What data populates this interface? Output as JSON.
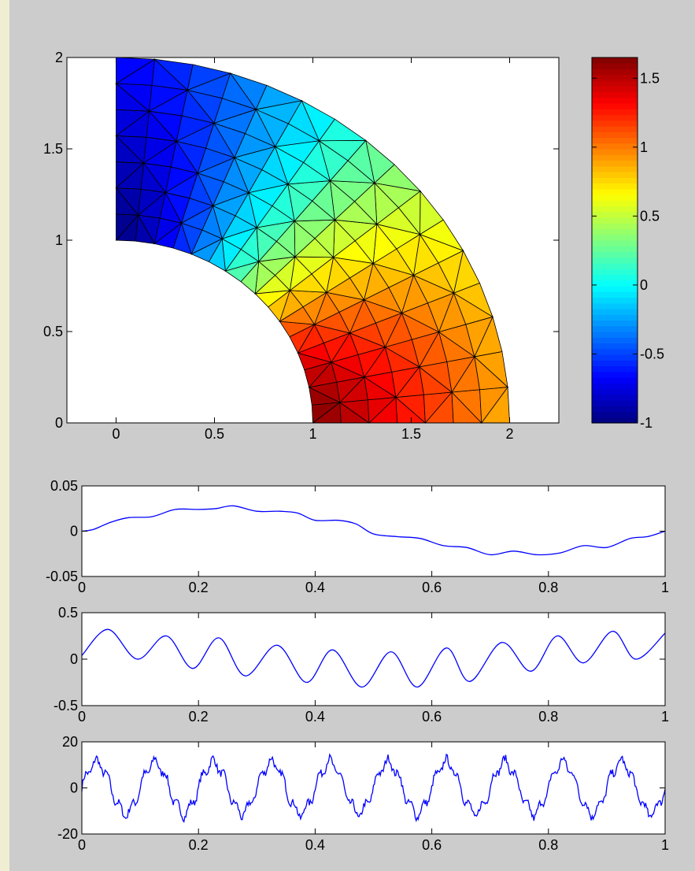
{
  "colors": {
    "frame_background": "#cccccc",
    "page_background": "#f0eed2",
    "axes_background": "#ffffff",
    "line": "#0000ff",
    "mesh_edge": "#000000"
  },
  "chart_data": [
    {
      "type": "heatmap",
      "description_kind": "pde-solution-surface-on-triangular-mesh",
      "domain_shape": "quarter-annulus",
      "inner_radius": 1,
      "outer_radius": 2,
      "xlim": [
        -0.25,
        2.25
      ],
      "ylim": [
        0,
        2
      ],
      "x_ticks": [
        0,
        0.5,
        1,
        1.5,
        2
      ],
      "x_tick_labels": [
        "0",
        "0.5",
        "1",
        "1.5",
        "2"
      ],
      "y_ticks": [
        0,
        0.5,
        1,
        1.5,
        2
      ],
      "y_tick_labels": [
        "0",
        "0.5",
        "1",
        "1.5",
        "2"
      ],
      "colormap": "jet",
      "color_range": [
        -1,
        1.65
      ],
      "colorbar_ticks": [
        -1,
        -0.5,
        0,
        0.5,
        1,
        1.5
      ],
      "colorbar_tick_labels": [
        "-1",
        "-0.5",
        "0",
        "0.5",
        "1",
        "1.5"
      ],
      "colorbar_placement": "right",
      "value_samples": [
        {
          "x": 1.0,
          "y": 0.0,
          "value": 1.65
        },
        {
          "x": 2.0,
          "y": 0.0,
          "value": 0.8
        },
        {
          "x": 0.0,
          "y": 1.0,
          "value": -1.0
        },
        {
          "x": 0.0,
          "y": 2.0,
          "value": -0.3
        },
        {
          "x": 1.41,
          "y": 1.41,
          "value": 0.3
        }
      ]
    },
    {
      "type": "line",
      "xlim": [
        0,
        1
      ],
      "ylim": [
        -0.05,
        0.05
      ],
      "x_ticks": [
        0,
        0.2,
        0.4,
        0.6,
        0.8,
        1
      ],
      "x_tick_labels": [
        "0",
        "0.2",
        "0.4",
        "0.6",
        "0.8",
        "1"
      ],
      "y_ticks": [
        -0.05,
        0,
        0.05
      ],
      "y_tick_labels": [
        "-0.05",
        "0",
        "0.05"
      ],
      "series": [
        {
          "x": [
            0,
            0.02,
            0.05,
            0.08,
            0.12,
            0.16,
            0.2,
            0.23,
            0.26,
            0.3,
            0.34,
            0.37,
            0.4,
            0.44,
            0.47,
            0.5,
            0.54,
            0.58,
            0.62,
            0.66,
            0.7,
            0.74,
            0.78,
            0.82,
            0.86,
            0.9,
            0.94,
            0.97,
            1
          ],
          "y": [
            0.0,
            0.002,
            0.01,
            0.015,
            0.016,
            0.024,
            0.024,
            0.025,
            0.028,
            0.022,
            0.022,
            0.02,
            0.012,
            0.012,
            0.008,
            -0.003,
            -0.006,
            -0.008,
            -0.016,
            -0.018,
            -0.026,
            -0.022,
            -0.026,
            -0.024,
            -0.016,
            -0.018,
            -0.008,
            -0.006,
            0.0
          ]
        }
      ]
    },
    {
      "type": "line",
      "xlim": [
        0,
        1
      ],
      "ylim": [
        -0.5,
        0.5
      ],
      "x_ticks": [
        0,
        0.2,
        0.4,
        0.6,
        0.8,
        1
      ],
      "x_tick_labels": [
        "0",
        "0.2",
        "0.4",
        "0.6",
        "0.8",
        "1"
      ],
      "y_ticks": [
        -0.5,
        0,
        0.5
      ],
      "y_tick_labels": [
        "-0.5",
        "0",
        "0.5"
      ],
      "series": [
        {
          "x": [
            0,
            0.045,
            0.095,
            0.145,
            0.19,
            0.235,
            0.28,
            0.335,
            0.385,
            0.43,
            0.48,
            0.53,
            0.575,
            0.625,
            0.665,
            0.72,
            0.77,
            0.815,
            0.86,
            0.91,
            0.95,
            1
          ],
          "y": [
            0.04,
            0.32,
            0.0,
            0.25,
            -0.1,
            0.23,
            -0.18,
            0.15,
            -0.25,
            0.1,
            -0.3,
            0.08,
            -0.3,
            0.12,
            -0.24,
            0.18,
            -0.13,
            0.25,
            -0.04,
            0.3,
            0.0,
            0.28
          ]
        }
      ]
    },
    {
      "type": "line",
      "xlim": [
        0,
        1
      ],
      "ylim": [
        -20,
        20
      ],
      "x_ticks": [
        0,
        0.2,
        0.4,
        0.6,
        0.8,
        1
      ],
      "x_tick_labels": [
        "0",
        "0.2",
        "0.4",
        "0.6",
        "0.8",
        "1"
      ],
      "y_ticks": [
        -20,
        0,
        20
      ],
      "y_tick_labels": [
        "-20",
        "0",
        "20"
      ],
      "period": 0.1,
      "amplitude": 11,
      "noise_amplitude": 1.5,
      "series": [
        {
          "x": [
            0,
            0.025,
            0.075,
            0.125,
            0.175,
            0.225,
            0.275,
            0.325,
            0.375,
            0.425,
            0.475,
            0.525,
            0.575,
            0.625,
            0.675,
            0.725,
            0.775,
            0.825,
            0.875,
            0.925,
            0.975,
            1
          ],
          "y": [
            0,
            11,
            -11,
            11,
            -11,
            11,
            -11,
            11,
            -11,
            11,
            -11,
            11,
            -11,
            11,
            -11,
            11,
            -11,
            11,
            -11,
            11,
            11,
            9
          ]
        }
      ]
    }
  ]
}
